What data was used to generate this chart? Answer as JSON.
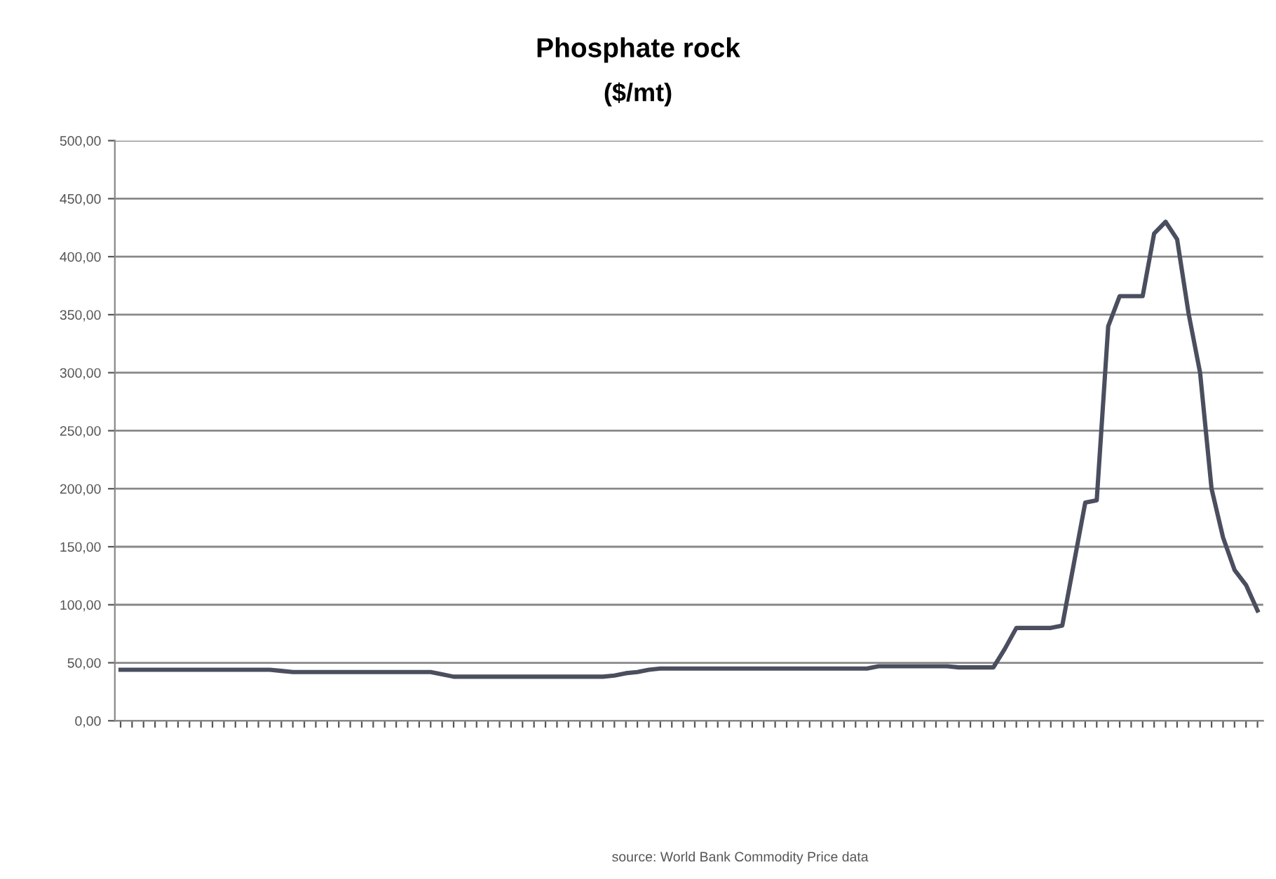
{
  "chart_data": {
    "type": "line",
    "title": "Phosphate rock",
    "subtitle": "($/mt)",
    "categories": [
      null,
      null,
      null,
      null,
      null,
      null,
      null,
      null,
      null,
      null,
      null,
      null,
      null,
      null,
      null,
      null,
      null,
      null,
      null,
      null,
      null,
      null,
      null,
      null,
      null,
      null,
      null,
      null,
      null,
      null,
      null,
      null,
      null,
      null,
      null,
      null,
      null,
      null,
      null,
      null,
      null,
      null,
      null,
      null,
      null,
      null,
      null,
      null,
      null,
      null,
      null,
      null,
      null,
      null,
      null,
      null,
      null,
      null,
      null,
      null,
      null,
      null,
      null,
      null,
      null,
      null,
      null,
      null,
      null,
      null,
      null,
      null,
      null,
      null,
      null,
      null,
      null,
      null,
      null,
      null,
      null,
      null,
      null,
      null,
      null,
      null,
      null,
      null,
      null,
      null,
      null,
      null,
      null,
      null,
      null,
      null,
      null,
      null,
      null,
      null
    ],
    "series": [
      {
        "color": "#4a4e5e",
        "values": [
          44,
          44,
          44,
          44,
          44,
          44,
          44,
          44,
          44,
          44,
          44,
          44,
          44,
          44,
          43,
          42,
          42,
          42,
          42,
          42,
          42,
          42,
          42,
          42,
          42,
          42,
          42,
          42,
          40,
          38,
          38,
          38,
          38,
          38,
          38,
          38,
          38,
          38,
          38,
          38,
          38,
          38,
          38,
          39,
          41,
          42,
          44,
          45,
          45,
          45,
          45,
          45,
          45,
          45,
          45,
          45,
          45,
          45,
          45,
          45,
          45,
          45,
          45,
          45,
          45,
          45,
          47,
          47,
          47,
          47,
          47,
          47,
          47,
          46,
          46,
          46,
          46,
          62,
          80,
          80,
          80,
          80,
          82,
          135,
          188,
          190,
          340,
          366,
          366,
          366,
          420,
          430,
          415,
          351,
          300,
          200,
          158,
          130,
          117,
          95
        ]
      }
    ],
    "ylim": [
      0,
      500
    ],
    "yticks": [
      {
        "value": 0,
        "label": "0,00"
      },
      {
        "value": 50,
        "label": "50,00"
      },
      {
        "value": 100,
        "label": "100,00"
      },
      {
        "value": 150,
        "label": "150,00"
      },
      {
        "value": 200,
        "label": "200,00"
      },
      {
        "value": 250,
        "label": "250,00"
      },
      {
        "value": 300,
        "label": "300,00"
      },
      {
        "value": 350,
        "label": "350,00"
      },
      {
        "value": 400,
        "label": "400,00"
      },
      {
        "value": 450,
        "label": "450,00"
      },
      {
        "value": 500,
        "label": "500,00"
      }
    ],
    "grid": "y",
    "annotations": [
      "source: World Bank Commodity Price data"
    ]
  }
}
